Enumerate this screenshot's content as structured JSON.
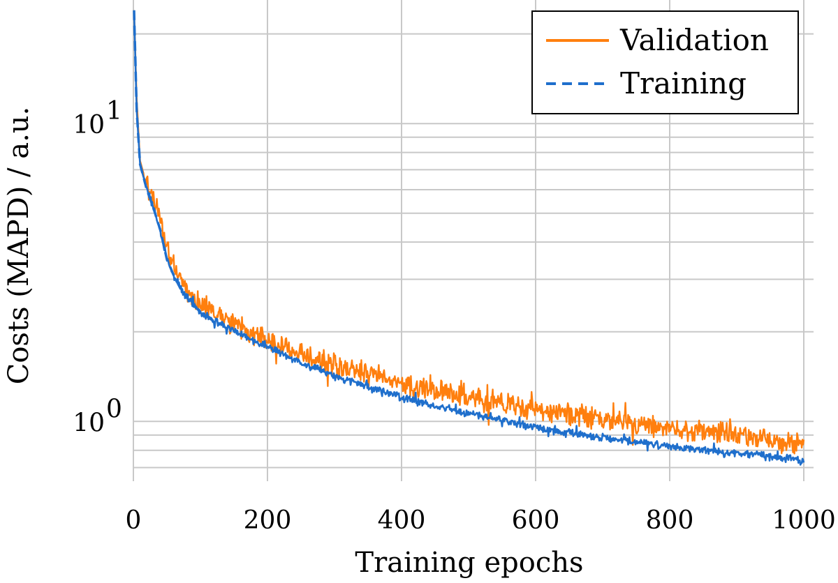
{
  "chart_data": {
    "type": "line",
    "title": "",
    "xlabel": "Training epochs",
    "ylabel": "Costs (MAPD) / a.u.",
    "yscale": "log",
    "xlim": [
      0,
      1000
    ],
    "ylim": [
      0.63,
      26
    ],
    "grid": true,
    "legend_position": "top-right",
    "x_ticks": [
      {
        "value": 0,
        "label": "0"
      },
      {
        "value": 200,
        "label": "200"
      },
      {
        "value": 400,
        "label": "400"
      },
      {
        "value": 600,
        "label": "600"
      },
      {
        "value": 800,
        "label": "800"
      },
      {
        "value": 1000,
        "label": "1000"
      }
    ],
    "y_ticks": [
      {
        "value": 1,
        "base": "10",
        "exp": "0"
      },
      {
        "value": 10,
        "base": "10",
        "exp": "1"
      }
    ],
    "series": [
      {
        "name": "Validation",
        "color": "#ff7f0e",
        "style": "solid",
        "x": [
          1,
          5,
          10,
          20,
          30,
          40,
          50,
          60,
          70,
          80,
          90,
          100,
          120,
          140,
          160,
          180,
          200,
          220,
          240,
          260,
          280,
          300,
          330,
          360,
          400,
          450,
          500,
          550,
          600,
          650,
          700,
          750,
          800,
          850,
          900,
          950,
          1000
        ],
        "values": [
          24,
          12,
          7.5,
          6.2,
          5.5,
          4.7,
          3.7,
          3.3,
          3.0,
          2.75,
          2.58,
          2.45,
          2.28,
          2.15,
          2.05,
          1.95,
          1.87,
          1.78,
          1.71,
          1.65,
          1.59,
          1.53,
          1.47,
          1.41,
          1.33,
          1.26,
          1.2,
          1.14,
          1.09,
          1.05,
          1.01,
          0.98,
          0.95,
          0.92,
          0.9,
          0.87,
          0.82
        ],
        "noise": 0.1
      },
      {
        "name": "Training",
        "color": "#1f6fcc",
        "style": "dashed",
        "x": [
          1,
          5,
          10,
          20,
          30,
          40,
          50,
          60,
          70,
          80,
          90,
          100,
          120,
          140,
          160,
          180,
          200,
          220,
          240,
          260,
          280,
          300,
          330,
          360,
          400,
          450,
          500,
          550,
          600,
          650,
          700,
          750,
          800,
          850,
          900,
          950,
          1000
        ],
        "values": [
          24,
          11,
          7.3,
          6.0,
          5.2,
          4.4,
          3.5,
          3.1,
          2.8,
          2.6,
          2.45,
          2.33,
          2.17,
          2.05,
          1.95,
          1.86,
          1.79,
          1.69,
          1.61,
          1.54,
          1.48,
          1.42,
          1.35,
          1.28,
          1.2,
          1.12,
          1.06,
          1.0,
          0.95,
          0.91,
          0.88,
          0.85,
          0.82,
          0.8,
          0.78,
          0.76,
          0.74
        ],
        "noise": 0.035
      }
    ]
  }
}
